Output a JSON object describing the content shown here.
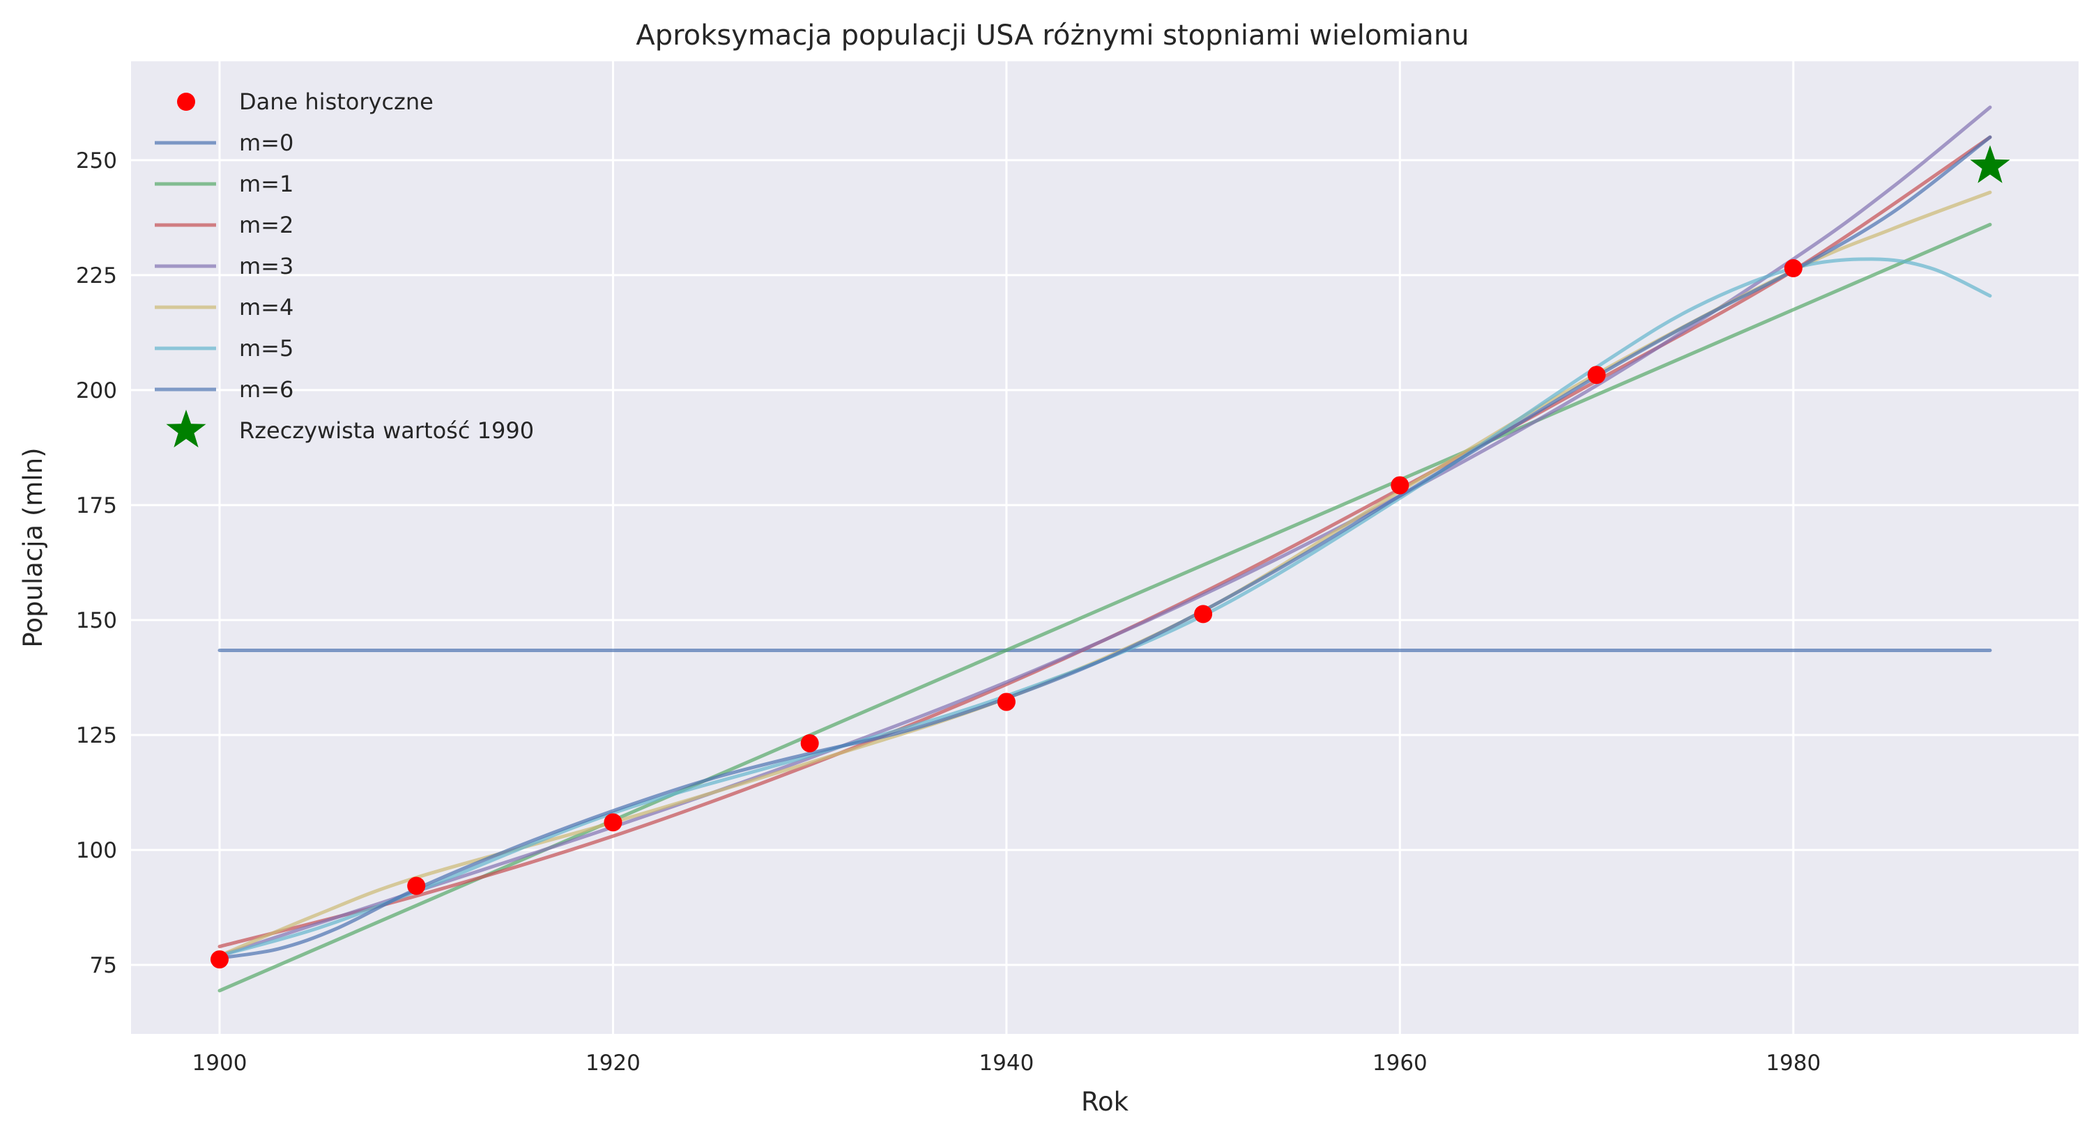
{
  "chart_data": {
    "type": "line",
    "title": "Aproksymacja populacji USA różnymi stopniami wielomianu",
    "xlabel": "Rok",
    "ylabel": "Populacja (mln)",
    "xlim": [
      1895.5,
      1994.5
    ],
    "ylim": [
      60,
      271.5
    ],
    "xticks": [
      1900,
      1920,
      1940,
      1960,
      1980
    ],
    "yticks": [
      75,
      100,
      125,
      150,
      175,
      200,
      225,
      250
    ],
    "grid": true,
    "legend_position": "top-left",
    "background": "#eaeaf2",
    "scatter": {
      "name": "Dane historyczne",
      "color": "#ff0000",
      "x": [
        1900,
        1910,
        1920,
        1930,
        1940,
        1950,
        1960,
        1970,
        1980
      ],
      "y": [
        76.2,
        92.2,
        106.0,
        123.2,
        132.2,
        151.3,
        179.3,
        203.3,
        226.5
      ]
    },
    "series": [
      {
        "name": "m=0",
        "color": "#4c72b0",
        "x": [
          1900,
          1990
        ],
        "y": [
          143.4,
          143.4
        ]
      },
      {
        "name": "m=1",
        "color": "#55a868",
        "x": [
          1900,
          1990
        ],
        "y": [
          69.4,
          236.0
        ]
      },
      {
        "name": "m=2",
        "color": "#c44e52",
        "x": [
          1900,
          1910,
          1920,
          1930,
          1940,
          1950,
          1960,
          1970,
          1980,
          1990
        ],
        "y": [
          79.0,
          90.0,
          103.0,
          118.5,
          136.0,
          156.0,
          178.5,
          202.0,
          226.0,
          255.0
        ]
      },
      {
        "name": "m=3",
        "color": "#8172b2",
        "x": [
          1900,
          1910,
          1920,
          1930,
          1940,
          1950,
          1960,
          1970,
          1980,
          1985,
          1990
        ],
        "y": [
          77.0,
          91.0,
          105.0,
          120.0,
          136.5,
          155.5,
          177.0,
          201.0,
          228.5,
          244.0,
          261.5
        ]
      },
      {
        "name": "m=4",
        "color": "#ccb974",
        "x": [
          1900,
          1905,
          1910,
          1920,
          1930,
          1940,
          1950,
          1960,
          1970,
          1980,
          1985,
          1990
        ],
        "y": [
          77.0,
          86.0,
          94.0,
          106.0,
          119.0,
          133.0,
          152.0,
          178.0,
          203.5,
          226.0,
          235.0,
          243.0
        ]
      },
      {
        "name": "m=5",
        "color": "#64b5cd",
        "x": [
          1900,
          1905,
          1910,
          1920,
          1930,
          1940,
          1950,
          1960,
          1970,
          1975,
          1980,
          1984,
          1987,
          1990
        ],
        "y": [
          77.0,
          83.0,
          91.0,
          108.0,
          120.5,
          133.5,
          151.0,
          176.5,
          205.0,
          218.0,
          226.5,
          228.5,
          226.5,
          220.5
        ]
      },
      {
        "name": "m=6",
        "color": "#4c72b0",
        "x": [
          1900,
          1903,
          1906,
          1910,
          1915,
          1920,
          1925,
          1930,
          1935,
          1940,
          1945,
          1950,
          1955,
          1960,
          1965,
          1970,
          1975,
          1980,
          1985,
          1990
        ],
        "y": [
          76.5,
          78.5,
          83.0,
          91.5,
          100.5,
          108.5,
          115.5,
          121.0,
          126.0,
          133.0,
          141.5,
          152.0,
          164.0,
          177.0,
          190.0,
          203.0,
          215.0,
          226.0,
          238.5,
          255.0
        ]
      }
    ],
    "marker": {
      "name": "Rzeczywista wartość 1990",
      "color": "#008000",
      "x": 1990,
      "y": 248.7
    }
  }
}
